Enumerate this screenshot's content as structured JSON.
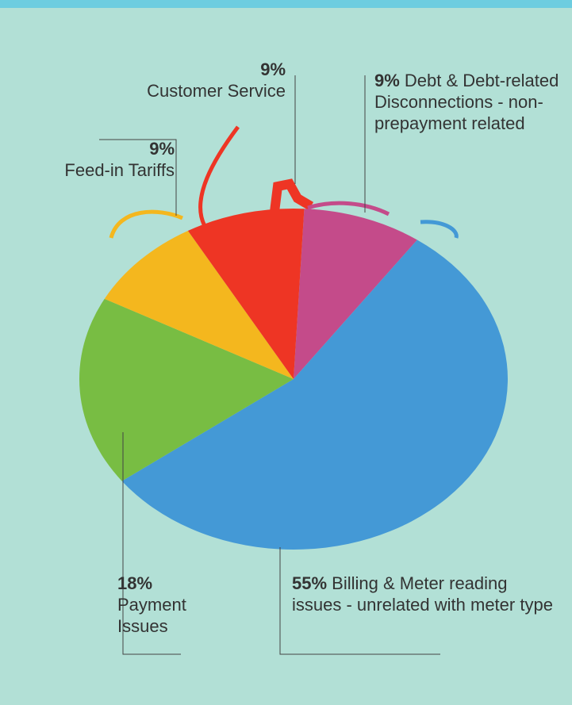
{
  "chart_data": {
    "type": "pie",
    "categories": [
      "Debt & Debt-related Disconnections - non-prepayment related",
      "Billing & Meter reading issues - unrelated with meter type",
      "Payment Issues",
      "Feed-in Tariffs",
      "Customer Service"
    ],
    "values": [
      9,
      55,
      18,
      9,
      9
    ],
    "value_labels": [
      "9%",
      "55%",
      "18%",
      "9%",
      "9%"
    ],
    "colors": [
      "#c44b8a",
      "#4499d6",
      "#78bd43",
      "#f4b71e",
      "#ee3524"
    ]
  }
}
